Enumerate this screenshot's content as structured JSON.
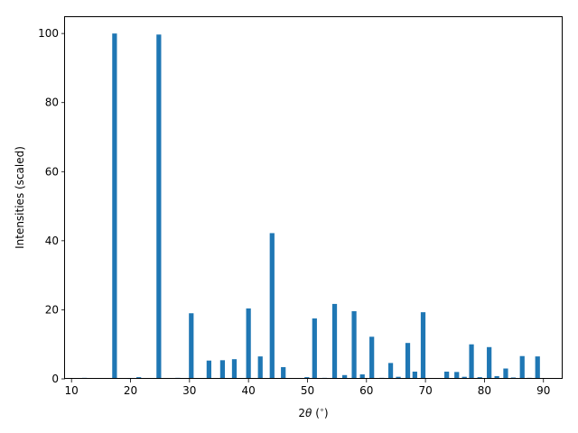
{
  "chart_data": {
    "type": "bar",
    "title": "",
    "xlabel_prefix": "2",
    "xlabel_theta": "θ",
    "xlabel_unit": " (",
    "xlabel_deg": "∘",
    "xlabel_close": ")",
    "ylabel": "Intensities (scaled)",
    "xlim": [
      8.9,
      93.1
    ],
    "ylim": [
      0,
      105
    ],
    "xticks": [
      10,
      20,
      30,
      40,
      50,
      60,
      70,
      80,
      90
    ],
    "yticks": [
      0,
      20,
      40,
      60,
      80,
      100
    ],
    "bar_width": 0.8,
    "color": "#1f77b4",
    "grid": false,
    "x": [
      12.2,
      17.3,
      19.9,
      21.4,
      24.8,
      28.0,
      30.3,
      33.3,
      35.6,
      37.6,
      40.0,
      42.0,
      44.0,
      45.9,
      49.9,
      51.2,
      52.9,
      54.6,
      56.3,
      57.9,
      59.3,
      60.9,
      62.6,
      64.1,
      65.4,
      67.0,
      68.2,
      69.6,
      73.6,
      75.3,
      76.6,
      77.8,
      79.2,
      80.8,
      82.1,
      83.6,
      84.9,
      86.4,
      87.6,
      89.0
    ],
    "values": [
      0.3,
      100.0,
      0.1,
      0.5,
      99.7,
      0.3,
      19.0,
      5.3,
      5.4,
      5.7,
      20.4,
      6.5,
      42.2,
      3.4,
      0.5,
      17.5,
      0.3,
      21.7,
      1.1,
      19.6,
      1.3,
      12.2,
      0.3,
      4.6,
      0.6,
      10.4,
      2.1,
      19.3,
      2.1,
      2.0,
      0.6,
      10.0,
      0.5,
      9.2,
      0.8,
      3.0,
      0.4,
      6.6,
      0.3,
      6.5
    ]
  }
}
